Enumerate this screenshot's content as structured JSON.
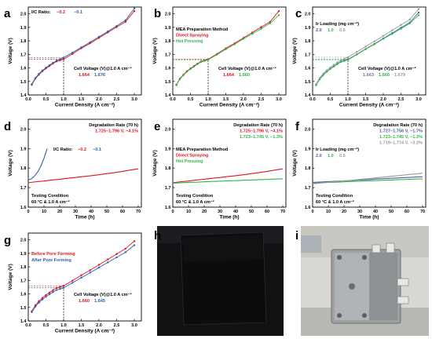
{
  "panel_labels": [
    "a",
    "b",
    "c",
    "d",
    "e",
    "f",
    "g",
    "h",
    "i"
  ],
  "colors": {
    "red": "#e0141e",
    "blue": "#2a62b0",
    "green": "#2fb54a",
    "darkblue": "#4a5fa8",
    "gray": "#9a9a9a",
    "purple": "#7a6fa8"
  },
  "chart_data": [
    {
      "id": "a",
      "type": "line",
      "xlabel": "Current Density (A cm⁻²)",
      "ylabel": "Voltage (V)",
      "xlim": [
        0,
        3.2
      ],
      "ylim": [
        1.4,
        2.05
      ],
      "xticks": [
        "0.0",
        "0.5",
        "1.0",
        "1.5",
        "2.0",
        "2.5",
        "3.0"
      ],
      "yticks": [
        "1.4",
        "1.5",
        "1.6",
        "1.7",
        "1.8",
        "1.9",
        "2.0"
      ],
      "legend_title": "I/C Ratio:",
      "series": [
        {
          "name": "−0.2",
          "color_key": "red",
          "x": [
            0.1,
            0.2,
            0.3,
            0.4,
            0.5,
            0.6,
            0.7,
            0.8,
            0.9,
            1.0,
            1.25,
            1.5,
            1.75,
            2.0,
            2.25,
            2.5,
            2.75,
            3.0
          ],
          "y": [
            1.475,
            1.52,
            1.55,
            1.575,
            1.596,
            1.614,
            1.632,
            1.648,
            1.656,
            1.664,
            1.703,
            1.745,
            1.782,
            1.822,
            1.862,
            1.902,
            1.94,
            2.02
          ]
        },
        {
          "name": "−0.1",
          "color_key": "blue",
          "x": [
            0.1,
            0.2,
            0.3,
            0.4,
            0.5,
            0.6,
            0.7,
            0.8,
            0.9,
            1.0,
            1.25,
            1.5,
            1.75,
            2.0,
            2.25,
            2.5,
            2.75,
            3.0
          ],
          "y": [
            1.48,
            1.525,
            1.556,
            1.581,
            1.602,
            1.62,
            1.638,
            1.654,
            1.665,
            1.676,
            1.713,
            1.752,
            1.79,
            1.83,
            1.87,
            1.91,
            1.952,
            2.04
          ]
        }
      ],
      "guide": {
        "x": 1.0,
        "ys": [
          1.664,
          1.676
        ]
      },
      "cell_voltage": {
        "label": "Cell Voltage (V)@1.0 A cm⁻²",
        "values": [
          {
            "text": "1.664",
            "color_key": "red"
          },
          {
            "text": "1.676",
            "color_key": "blue"
          }
        ]
      }
    },
    {
      "id": "b",
      "type": "line",
      "xlabel": "Current Density (A cm⁻²)",
      "ylabel": "Voltage (V)",
      "xlim": [
        0,
        3.2
      ],
      "ylim": [
        1.4,
        2.05
      ],
      "xticks": [
        "0.0",
        "0.5",
        "1.0",
        "1.5",
        "2.0",
        "2.5",
        "3.0"
      ],
      "yticks": [
        "1.4",
        "1.5",
        "1.6",
        "1.7",
        "1.8",
        "1.9",
        "2.0"
      ],
      "legend_title": "MEA Preparation Method",
      "series": [
        {
          "name": "Direct Spraying",
          "color_key": "red",
          "x": [
            0.1,
            0.2,
            0.3,
            0.4,
            0.5,
            0.6,
            0.7,
            0.8,
            0.9,
            1.0,
            1.25,
            1.5,
            1.75,
            2.0,
            2.25,
            2.5,
            2.75,
            3.0
          ],
          "y": [
            1.475,
            1.52,
            1.55,
            1.575,
            1.596,
            1.614,
            1.632,
            1.648,
            1.656,
            1.664,
            1.703,
            1.745,
            1.782,
            1.822,
            1.862,
            1.902,
            1.94,
            2.02
          ]
        },
        {
          "name": "Hot Pressing",
          "color_key": "green",
          "x": [
            0.1,
            0.2,
            0.3,
            0.4,
            0.5,
            0.6,
            0.7,
            0.8,
            0.9,
            1.0,
            1.25,
            1.5,
            1.75,
            2.0,
            2.25,
            2.5,
            2.75,
            3.0
          ],
          "y": [
            1.472,
            1.516,
            1.546,
            1.571,
            1.592,
            1.61,
            1.628,
            1.644,
            1.652,
            1.66,
            1.698,
            1.738,
            1.775,
            1.815,
            1.852,
            1.89,
            1.93,
            1.99
          ]
        }
      ],
      "guide": {
        "x": 1.0,
        "ys": [
          1.664,
          1.66
        ]
      },
      "cell_voltage": {
        "label": "Cell Voltage (V)@1.0 A cm⁻²",
        "values": [
          {
            "text": "1.664",
            "color_key": "red"
          },
          {
            "text": "1.660",
            "color_key": "green"
          }
        ]
      }
    },
    {
      "id": "c",
      "type": "line",
      "xlabel": "Current Density (A cm⁻²)",
      "ylabel": "Voltage (V)",
      "xlim": [
        0,
        3.2
      ],
      "ylim": [
        1.4,
        2.05
      ],
      "xticks": [
        "0.0",
        "0.5",
        "1.0",
        "1.5",
        "2.0",
        "2.5",
        "3.0"
      ],
      "yticks": [
        "1.4",
        "1.5",
        "1.6",
        "1.7",
        "1.8",
        "1.9",
        "2.0"
      ],
      "legend_title": "Ir Loading (mg cm⁻²)",
      "series": [
        {
          "name": "2.0",
          "color_key": "darkblue",
          "x": [
            0.1,
            0.2,
            0.3,
            0.4,
            0.5,
            0.6,
            0.7,
            0.8,
            0.9,
            1.0,
            1.25,
            1.5,
            1.75,
            2.0,
            2.25,
            2.5,
            2.75,
            3.0
          ],
          "y": [
            1.474,
            1.518,
            1.549,
            1.573,
            1.594,
            1.612,
            1.63,
            1.646,
            1.655,
            1.663,
            1.7,
            1.74,
            1.778,
            1.818,
            1.857,
            1.897,
            1.936,
            2.01
          ]
        },
        {
          "name": "1.0",
          "color_key": "green",
          "x": [
            0.1,
            0.2,
            0.3,
            0.4,
            0.5,
            0.6,
            0.7,
            0.8,
            0.9,
            1.0,
            1.25,
            1.5,
            1.75,
            2.0,
            2.25,
            2.5,
            2.75,
            3.0
          ],
          "y": [
            1.472,
            1.516,
            1.546,
            1.571,
            1.592,
            1.61,
            1.628,
            1.644,
            1.652,
            1.66,
            1.698,
            1.738,
            1.775,
            1.815,
            1.852,
            1.89,
            1.93,
            1.99
          ]
        },
        {
          "name": "0.5",
          "color_key": "gray",
          "x": [
            0.1,
            0.2,
            0.3,
            0.4,
            0.5,
            0.6,
            0.7,
            0.8,
            0.9,
            1.0,
            1.25,
            1.5,
            1.75,
            2.0,
            2.25,
            2.5,
            2.75,
            3.0
          ],
          "y": [
            1.48,
            1.526,
            1.557,
            1.582,
            1.603,
            1.622,
            1.64,
            1.656,
            1.668,
            1.679,
            1.718,
            1.758,
            1.797,
            1.837,
            1.878,
            1.918,
            1.958,
            2.035
          ]
        }
      ],
      "guide": {
        "x": 1.0,
        "ys": [
          1.663,
          1.66,
          1.679
        ]
      },
      "cell_voltage": {
        "label": "Cell Voltage (V)@1.0 A cm⁻²",
        "values": [
          {
            "text": "1.663",
            "color_key": "purple"
          },
          {
            "text": "1.660",
            "color_key": "green"
          },
          {
            "text": "1.679",
            "color_key": "gray"
          }
        ]
      }
    },
    {
      "id": "d",
      "type": "line",
      "xlabel": "Time (h)",
      "ylabel": "Voltage (V)",
      "xlim": [
        0,
        72
      ],
      "ylim": [
        1.6,
        2.05
      ],
      "xticks": [
        "0",
        "10",
        "20",
        "30",
        "40",
        "50",
        "60",
        "70"
      ],
      "yticks": [
        "1.6",
        "1.7",
        "1.8",
        "1.9",
        "2.0"
      ],
      "legend_title": "I/C Ratio:",
      "series": [
        {
          "name": "−0.2",
          "color_key": "red",
          "x": [
            0,
            5,
            10,
            15,
            20,
            25,
            30,
            35,
            40,
            45,
            50,
            55,
            60,
            65,
            70
          ],
          "y": [
            1.725,
            1.73,
            1.734,
            1.739,
            1.743,
            1.748,
            1.752,
            1.757,
            1.761,
            1.766,
            1.772,
            1.777,
            1.783,
            1.79,
            1.796
          ]
        },
        {
          "name": "−0.1",
          "color_key": "blue",
          "x": [
            0,
            2,
            4,
            6,
            8,
            10,
            12
          ],
          "y": [
            1.74,
            1.745,
            1.76,
            1.78,
            1.81,
            1.85,
            1.9
          ]
        }
      ],
      "degradation": {
        "title": "Degradation Rate (70 h)",
        "lines": [
          {
            "text": "1.725–1.796 V, −4.1%",
            "color_key": "red"
          }
        ]
      },
      "condition": {
        "title": "Testing Condition",
        "text": "60 °C & 1.0 A cm⁻²"
      }
    },
    {
      "id": "e",
      "type": "line",
      "xlabel": "Time (h)",
      "ylabel": "Voltage (V)",
      "xlim": [
        0,
        72
      ],
      "ylim": [
        1.6,
        2.05
      ],
      "xticks": [
        "0",
        "10",
        "20",
        "30",
        "40",
        "50",
        "60",
        "70"
      ],
      "yticks": [
        "1.6",
        "1.7",
        "1.8",
        "1.9",
        "2.0"
      ],
      "legend_title": "MEA Preparation Method",
      "series": [
        {
          "name": "Direct Spraying",
          "color_key": "red",
          "x": [
            0,
            5,
            10,
            15,
            20,
            25,
            30,
            35,
            40,
            45,
            50,
            55,
            60,
            65,
            70
          ],
          "y": [
            1.725,
            1.73,
            1.734,
            1.739,
            1.743,
            1.748,
            1.752,
            1.757,
            1.761,
            1.766,
            1.772,
            1.777,
            1.783,
            1.79,
            1.796
          ]
        },
        {
          "name": "Hot Pressing",
          "color_key": "green",
          "x": [
            0,
            5,
            10,
            15,
            20,
            25,
            30,
            35,
            40,
            45,
            50,
            55,
            60,
            65,
            70
          ],
          "y": [
            1.723,
            1.725,
            1.727,
            1.728,
            1.73,
            1.732,
            1.733,
            1.735,
            1.736,
            1.738,
            1.739,
            1.741,
            1.742,
            1.744,
            1.745
          ]
        }
      ],
      "degradation": {
        "title": "Degradation Rate (70 h)",
        "lines": [
          {
            "text": "1.725–1.796 V, −4.1%",
            "color_key": "red"
          },
          {
            "text": "1.723–1.745 V, −1.3%",
            "color_key": "green"
          }
        ]
      },
      "condition": {
        "title": "Testing Condition",
        "text": "60 °C & 1.0 A cm⁻²"
      }
    },
    {
      "id": "f",
      "type": "line",
      "xlabel": "Time (h)",
      "ylabel": "Voltage (V)",
      "xlim": [
        0,
        72
      ],
      "ylim": [
        1.6,
        2.05
      ],
      "xticks": [
        "0",
        "10",
        "20",
        "30",
        "40",
        "50",
        "60",
        "70"
      ],
      "yticks": [
        "1.6",
        "1.7",
        "1.8",
        "1.9",
        "2.0"
      ],
      "legend_title": "Ir Loading (mg cm⁻²)",
      "series": [
        {
          "name": "2.0",
          "color_key": "darkblue",
          "x": [
            0,
            5,
            10,
            15,
            20,
            25,
            30,
            35,
            40,
            45,
            50,
            55,
            60,
            65,
            70
          ],
          "y": [
            1.727,
            1.729,
            1.731,
            1.733,
            1.735,
            1.737,
            1.739,
            1.741,
            1.744,
            1.746,
            1.748,
            1.75,
            1.752,
            1.754,
            1.756
          ]
        },
        {
          "name": "1.0",
          "color_key": "green",
          "x": [
            0,
            5,
            10,
            15,
            20,
            25,
            30,
            35,
            40,
            45,
            50,
            55,
            60,
            65,
            70
          ],
          "y": [
            1.723,
            1.725,
            1.727,
            1.728,
            1.73,
            1.732,
            1.733,
            1.735,
            1.736,
            1.738,
            1.739,
            1.741,
            1.742,
            1.744,
            1.745
          ]
        },
        {
          "name": "0.5",
          "color_key": "gray",
          "x": [
            0,
            5,
            10,
            15,
            20,
            25,
            30,
            35,
            40,
            45,
            50,
            55,
            60,
            65,
            70
          ],
          "y": [
            1.719,
            1.723,
            1.727,
            1.731,
            1.735,
            1.738,
            1.742,
            1.746,
            1.75,
            1.754,
            1.758,
            1.762,
            1.766,
            1.77,
            1.774
          ]
        }
      ],
      "degradation": {
        "title": "Degradation Rate (70 h)",
        "lines": [
          {
            "text": "1.727–1.756 V, −1.7%",
            "color_key": "darkblue"
          },
          {
            "text": "1.723–1.745 V, −1.3%",
            "color_key": "green"
          },
          {
            "text": "1.719–1.774 V, −3.2%",
            "color_key": "gray"
          }
        ]
      },
      "condition": {
        "title": "Testing Condition",
        "text": "60 °C & 1.0 A cm⁻²"
      }
    },
    {
      "id": "g",
      "type": "line",
      "xlabel": "Current Density (A cm⁻²)",
      "ylabel": "Voltage (V)",
      "xlim": [
        0,
        3.2
      ],
      "ylim": [
        1.4,
        2.05
      ],
      "xticks": [
        "0.0",
        "0.5",
        "1.0",
        "1.5",
        "2.0",
        "2.5",
        "3.0"
      ],
      "yticks": [
        "1.4",
        "1.5",
        "1.6",
        "1.7",
        "1.8",
        "1.9",
        "2.0"
      ],
      "legend_title": "",
      "series": [
        {
          "name": "Before Pore Forming",
          "color_key": "red",
          "x": [
            0.1,
            0.2,
            0.3,
            0.4,
            0.5,
            0.6,
            0.7,
            0.8,
            0.9,
            1.0,
            1.25,
            1.5,
            1.75,
            2.0,
            2.25,
            2.5,
            2.75,
            3.0
          ],
          "y": [
            1.472,
            1.516,
            1.546,
            1.571,
            1.592,
            1.61,
            1.628,
            1.644,
            1.652,
            1.66,
            1.698,
            1.738,
            1.775,
            1.815,
            1.855,
            1.895,
            1.935,
            1.99
          ]
        },
        {
          "name": "After Pore Forming",
          "color_key": "blue",
          "x": [
            0.1,
            0.2,
            0.3,
            0.4,
            0.5,
            0.6,
            0.7,
            0.8,
            0.9,
            1.0,
            1.25,
            1.5,
            1.75,
            2.0,
            2.25,
            2.5,
            2.75,
            3.0
          ],
          "y": [
            1.465,
            1.506,
            1.535,
            1.559,
            1.579,
            1.597,
            1.614,
            1.629,
            1.637,
            1.645,
            1.682,
            1.72,
            1.757,
            1.795,
            1.833,
            1.87,
            1.908,
            1.96
          ]
        }
      ],
      "guide": {
        "x": 1.0,
        "ys": [
          1.66,
          1.645
        ]
      },
      "cell_voltage": {
        "label": "Cell Voltage (V)@1.0 A cm⁻²",
        "values": [
          {
            "text": "1.660",
            "color_key": "red"
          },
          {
            "text": "1.645",
            "color_key": "blue"
          }
        ]
      }
    }
  ]
}
